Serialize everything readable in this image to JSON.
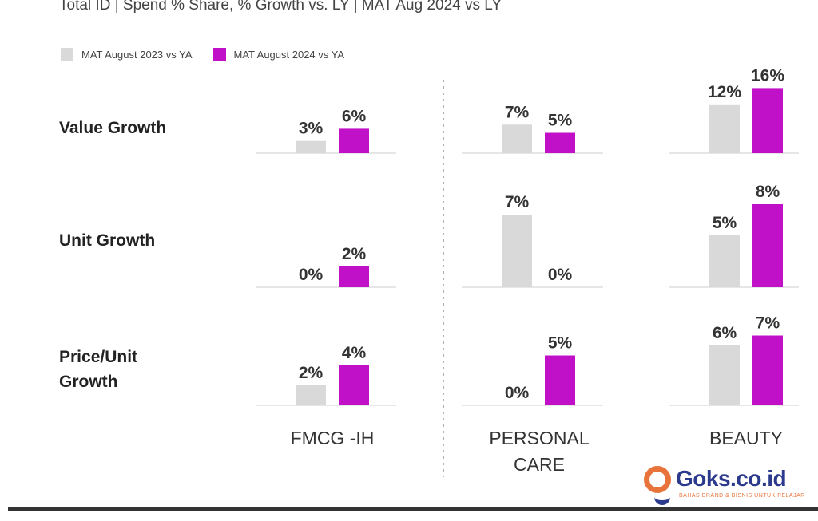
{
  "header": {
    "title": "Total ID | Spend % Share, % Growth vs. LY | MAT Aug 2024 vs LY"
  },
  "legend": {
    "items": [
      {
        "label": "MAT August 2023 vs YA",
        "color": "#d9d9d9"
      },
      {
        "label": "MAT August 2024 vs YA",
        "color": "#c010c8"
      }
    ]
  },
  "rows": [
    {
      "label": "Value Growth"
    },
    {
      "label": "Unit Growth"
    },
    {
      "label": "Price/Unit Growth"
    }
  ],
  "brand": {
    "name": "Goks.co.id",
    "tagline": "BAHAS BRAND & BISNIS UNTUK PELAJAR",
    "colors": {
      "primary": "#2b3a8c",
      "accent": "#e8743b"
    }
  },
  "chart_data": {
    "type": "bar",
    "layout": "small-multiples grid (3 metrics x 3 categories)",
    "categories": [
      "FMCG -IH",
      "PERSONAL CARE",
      "BEAUTY"
    ],
    "metrics": [
      "Value Growth",
      "Unit Growth",
      "Price/Unit Growth"
    ],
    "series": [
      {
        "name": "MAT August 2023 vs YA",
        "color": "#d9d9d9",
        "values": [
          [
            3,
            7,
            12
          ],
          [
            0,
            7,
            5
          ],
          [
            2,
            0,
            6
          ]
        ]
      },
      {
        "name": "MAT August 2024 vs YA",
        "color": "#c010c8",
        "values": [
          [
            6,
            5,
            16
          ],
          [
            2,
            0,
            8
          ],
          [
            4,
            5,
            7
          ]
        ]
      }
    ],
    "value_format": "percent",
    "grid": false,
    "legend_position": "top-left"
  }
}
